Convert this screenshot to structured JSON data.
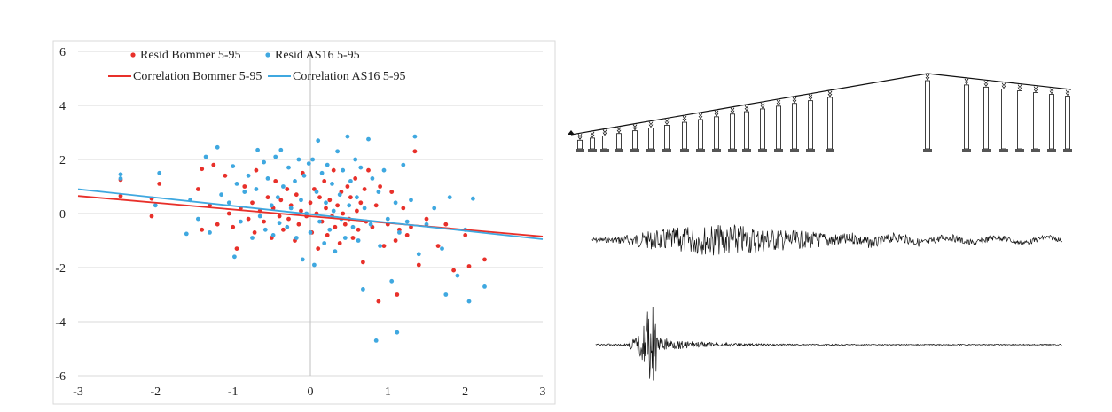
{
  "chart_data": {
    "type": "scatter",
    "title": "",
    "xlabel": "",
    "ylabel": "",
    "xlim": [
      -3,
      3
    ],
    "ylim": [
      -6,
      6
    ],
    "xticks": [
      "-3",
      "-2",
      "-1",
      "0",
      "1",
      "2",
      "3"
    ],
    "yticks": [
      "6",
      "4",
      "2",
      "0",
      "-2",
      "-4",
      "-6"
    ],
    "grid": "horizontal",
    "legend_position": "top",
    "series": [
      {
        "name": "Resid Bommer 5-95",
        "kind": "points",
        "color": "#e8302a",
        "points": [
          [
            -2.45,
            1.25
          ],
          [
            -2.45,
            0.65
          ],
          [
            -2.05,
            0.55
          ],
          [
            -2.05,
            -0.1
          ],
          [
            -1.95,
            1.1
          ],
          [
            -1.45,
            0.9
          ],
          [
            -1.4,
            1.65
          ],
          [
            -1.4,
            -0.6
          ],
          [
            -1.3,
            0.3
          ],
          [
            -1.25,
            1.8
          ],
          [
            -1.2,
            -0.4
          ],
          [
            -1.1,
            1.4
          ],
          [
            -1.05,
            0.0
          ],
          [
            -1.0,
            -0.5
          ],
          [
            -0.95,
            -1.3
          ],
          [
            -0.9,
            0.2
          ],
          [
            -0.85,
            1.0
          ],
          [
            -0.8,
            -0.2
          ],
          [
            -0.75,
            0.4
          ],
          [
            -0.72,
            -0.7
          ],
          [
            -0.7,
            1.6
          ],
          [
            -0.65,
            0.1
          ],
          [
            -0.6,
            -0.3
          ],
          [
            -0.55,
            0.6
          ],
          [
            -0.5,
            -0.9
          ],
          [
            -0.48,
            0.2
          ],
          [
            -0.45,
            1.2
          ],
          [
            -0.4,
            -0.1
          ],
          [
            -0.38,
            0.5
          ],
          [
            -0.35,
            -0.6
          ],
          [
            -0.3,
            0.9
          ],
          [
            -0.28,
            -0.2
          ],
          [
            -0.25,
            0.3
          ],
          [
            -0.2,
            -1.0
          ],
          [
            -0.18,
            0.7
          ],
          [
            -0.15,
            -0.4
          ],
          [
            -0.12,
            0.1
          ],
          [
            -0.1,
            1.5
          ],
          [
            -0.05,
            -0.1
          ],
          [
            0.0,
            0.4
          ],
          [
            0.02,
            -0.7
          ],
          [
            0.05,
            0.9
          ],
          [
            0.08,
            0.0
          ],
          [
            0.1,
            -1.3
          ],
          [
            0.12,
            0.6
          ],
          [
            0.15,
            -0.3
          ],
          [
            0.18,
            1.2
          ],
          [
            0.2,
            0.2
          ],
          [
            0.22,
            -0.8
          ],
          [
            0.25,
            0.5
          ],
          [
            0.28,
            -0.1
          ],
          [
            0.3,
            1.6
          ],
          [
            0.32,
            -0.5
          ],
          [
            0.35,
            0.3
          ],
          [
            0.38,
            -1.1
          ],
          [
            0.4,
            0.8
          ],
          [
            0.42,
            0.0
          ],
          [
            0.45,
            -0.4
          ],
          [
            0.48,
            1.0
          ],
          [
            0.5,
            -0.2
          ],
          [
            0.52,
            0.6
          ],
          [
            0.55,
            -0.9
          ],
          [
            0.58,
            1.3
          ],
          [
            0.6,
            0.1
          ],
          [
            0.62,
            -0.6
          ],
          [
            0.65,
            0.4
          ],
          [
            0.68,
            -1.8
          ],
          [
            0.7,
            0.9
          ],
          [
            0.72,
            -0.3
          ],
          [
            0.75,
            1.6
          ],
          [
            0.8,
            -0.5
          ],
          [
            0.85,
            0.3
          ],
          [
            0.88,
            -3.25
          ],
          [
            0.9,
            1.0
          ],
          [
            0.95,
            -1.2
          ],
          [
            1.0,
            -0.4
          ],
          [
            1.05,
            0.8
          ],
          [
            1.1,
            -1.0
          ],
          [
            1.12,
            -3.0
          ],
          [
            1.15,
            -0.6
          ],
          [
            1.2,
            0.2
          ],
          [
            1.25,
            -0.8
          ],
          [
            1.3,
            -0.5
          ],
          [
            1.35,
            2.3
          ],
          [
            1.4,
            -1.9
          ],
          [
            1.5,
            -0.2
          ],
          [
            1.65,
            -1.2
          ],
          [
            1.75,
            -0.4
          ],
          [
            1.85,
            -2.1
          ],
          [
            2.0,
            -0.8
          ],
          [
            2.05,
            -1.95
          ],
          [
            2.25,
            -1.7
          ]
        ]
      },
      {
        "name": "Resid AS16 5-95",
        "kind": "points",
        "color": "#3fa8e0",
        "points": [
          [
            -2.45,
            1.45
          ],
          [
            -2.45,
            1.3
          ],
          [
            -2.0,
            0.3
          ],
          [
            -1.95,
            1.5
          ],
          [
            -1.6,
            -0.75
          ],
          [
            -1.55,
            0.5
          ],
          [
            -1.45,
            -0.2
          ],
          [
            -1.35,
            2.1
          ],
          [
            -1.3,
            -0.7
          ],
          [
            -1.2,
            2.45
          ],
          [
            -1.15,
            0.7
          ],
          [
            -1.05,
            0.4
          ],
          [
            -1.0,
            1.75
          ],
          [
            -0.98,
            -1.6
          ],
          [
            -0.95,
            1.1
          ],
          [
            -0.9,
            -0.3
          ],
          [
            -0.85,
            0.8
          ],
          [
            -0.8,
            1.4
          ],
          [
            -0.75,
            -0.9
          ],
          [
            -0.7,
            0.9
          ],
          [
            -0.68,
            2.35
          ],
          [
            -0.65,
            -0.1
          ],
          [
            -0.6,
            1.9
          ],
          [
            -0.58,
            -0.6
          ],
          [
            -0.55,
            1.3
          ],
          [
            -0.5,
            0.3
          ],
          [
            -0.48,
            -0.8
          ],
          [
            -0.45,
            2.1
          ],
          [
            -0.42,
            0.6
          ],
          [
            -0.4,
            -0.35
          ],
          [
            -0.38,
            2.35
          ],
          [
            -0.35,
            1.0
          ],
          [
            -0.3,
            -0.5
          ],
          [
            -0.28,
            1.7
          ],
          [
            -0.25,
            0.2
          ],
          [
            -0.2,
            1.2
          ],
          [
            -0.18,
            -0.9
          ],
          [
            -0.15,
            2.0
          ],
          [
            -0.12,
            0.5
          ],
          [
            -0.1,
            -1.7
          ],
          [
            -0.08,
            1.4
          ],
          [
            -0.05,
            0.0
          ],
          [
            -0.02,
            1.85
          ],
          [
            0.0,
            -0.7
          ],
          [
            0.03,
            2.0
          ],
          [
            0.05,
            -1.9
          ],
          [
            0.08,
            0.8
          ],
          [
            0.1,
            2.7
          ],
          [
            0.12,
            -0.3
          ],
          [
            0.15,
            1.5
          ],
          [
            0.18,
            -1.1
          ],
          [
            0.2,
            0.4
          ],
          [
            0.22,
            1.8
          ],
          [
            0.25,
            -0.6
          ],
          [
            0.28,
            1.1
          ],
          [
            0.3,
            0.1
          ],
          [
            0.32,
            -1.4
          ],
          [
            0.35,
            2.3
          ],
          [
            0.38,
            0.7
          ],
          [
            0.4,
            -0.2
          ],
          [
            0.42,
            1.6
          ],
          [
            0.45,
            -0.9
          ],
          [
            0.48,
            2.85
          ],
          [
            0.5,
            0.3
          ],
          [
            0.52,
            1.2
          ],
          [
            0.55,
            -0.5
          ],
          [
            0.58,
            2.0
          ],
          [
            0.6,
            0.6
          ],
          [
            0.62,
            -1.0
          ],
          [
            0.65,
            1.7
          ],
          [
            0.68,
            -2.8
          ],
          [
            0.7,
            0.2
          ],
          [
            0.75,
            2.75
          ],
          [
            0.78,
            -0.4
          ],
          [
            0.8,
            1.3
          ],
          [
            0.85,
            -4.7
          ],
          [
            0.88,
            0.8
          ],
          [
            0.9,
            -1.2
          ],
          [
            0.95,
            1.6
          ],
          [
            1.0,
            -0.2
          ],
          [
            1.05,
            -2.5
          ],
          [
            1.1,
            0.4
          ],
          [
            1.12,
            -4.4
          ],
          [
            1.15,
            -0.7
          ],
          [
            1.2,
            1.8
          ],
          [
            1.25,
            -0.3
          ],
          [
            1.3,
            0.5
          ],
          [
            1.35,
            2.85
          ],
          [
            1.4,
            -1.5
          ],
          [
            1.5,
            -0.4
          ],
          [
            1.6,
            0.2
          ],
          [
            1.7,
            -1.3
          ],
          [
            1.75,
            -3.0
          ],
          [
            1.8,
            0.6
          ],
          [
            1.9,
            -2.3
          ],
          [
            2.0,
            -0.6
          ],
          [
            2.05,
            -3.25
          ],
          [
            2.1,
            0.55
          ],
          [
            2.25,
            -2.7
          ]
        ]
      },
      {
        "name": "Correlation Bommer 5-95",
        "kind": "line",
        "color": "#e8302a",
        "x": [
          -3,
          3
        ],
        "y": [
          0.65,
          -0.85
        ]
      },
      {
        "name": "Correlation AS16 5-95",
        "kind": "line",
        "color": "#3fa8e0",
        "x": [
          -3,
          3
        ],
        "y": [
          0.9,
          -0.95
        ]
      }
    ]
  },
  "figures": {
    "bridge": {
      "pier_count": 25,
      "deck_color": "#111111"
    },
    "accelerogram_1": {
      "stroke": "#111111"
    },
    "accelerogram_2": {
      "stroke": "#111111"
    }
  }
}
